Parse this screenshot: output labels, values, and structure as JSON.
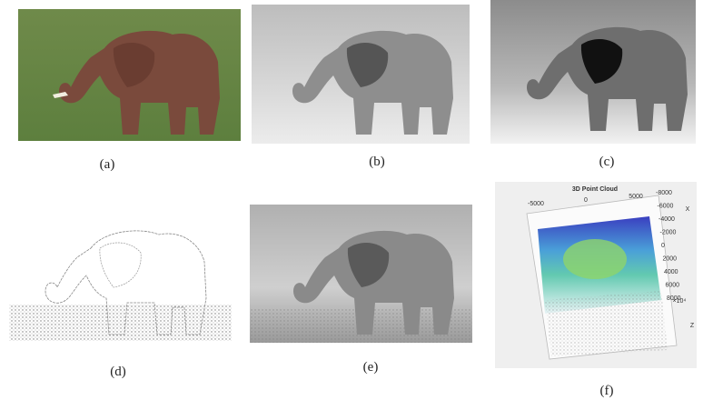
{
  "panels": [
    {
      "caption": "(a)"
    },
    {
      "caption": "(b)"
    },
    {
      "caption": "(c)"
    },
    {
      "caption": "(d)"
    },
    {
      "caption": "(e)"
    },
    {
      "caption": "(f)"
    }
  ],
  "point_cloud": {
    "title": "3D Point Cloud",
    "top_ticks": [
      "-5000",
      "0",
      "5000"
    ],
    "side_ticks": [
      "-8000",
      "-6000",
      "-4000",
      "-2000",
      "0",
      "2000",
      "4000",
      "6000",
      "8000"
    ],
    "x_label": "X",
    "z_label": "Z",
    "exponent": "×10⁴"
  }
}
